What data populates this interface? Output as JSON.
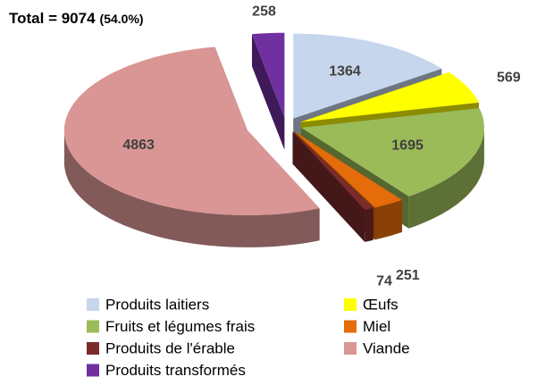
{
  "chart_data": {
    "type": "pie3d",
    "title": "Total = 9074",
    "subtitle": "(54.0%)",
    "categories": [
      "Produits laitiers",
      "Œufs",
      "Fruits et légumes frais",
      "Miel",
      "Produits de l'érable",
      "Viande",
      "Produits transformés"
    ],
    "values": [
      1364,
      569,
      1695,
      251,
      74,
      4863,
      258
    ],
    "colors": [
      "#c6d6ec",
      "#ffff00",
      "#9bbb59",
      "#e46c0a",
      "#7b2b2b",
      "#d99694",
      "#7030a0"
    ],
    "legend": "bottom"
  }
}
